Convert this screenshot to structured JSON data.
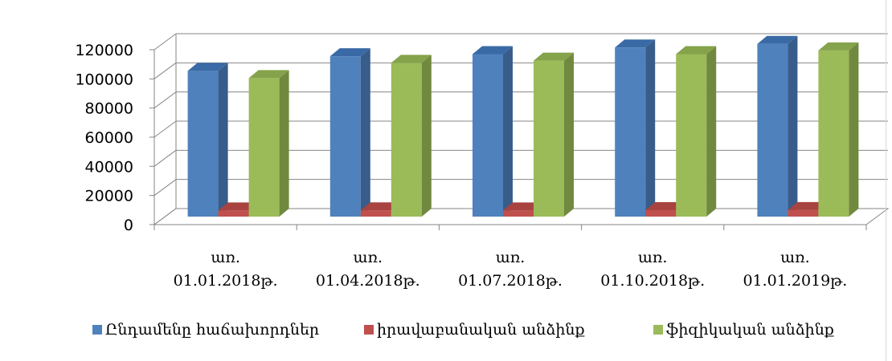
{
  "chart_data": {
    "type": "bar",
    "categories": [
      [
        "առ.",
        "01.01.2018թ."
      ],
      [
        "առ.",
        "01.04.2018թ."
      ],
      [
        "առ.",
        "01.07.2018թ."
      ],
      [
        "առ.",
        "01.10.2018թ."
      ],
      [
        "առ.",
        "01.01.2019թ."
      ]
    ],
    "series": [
      {
        "name": "Ընդամենը հաճախորդներ",
        "color": "#4f81bd",
        "side": "#385d8a",
        "top": "#3a6aa5",
        "values": [
          100000,
          110000,
          111500,
          116000,
          118500
        ]
      },
      {
        "name": "իրավաբանական անձինք",
        "color": "#c0504d",
        "side": "#8c3836",
        "top": "#a84340",
        "values": [
          4200,
          4300,
          4200,
          4400,
          4500
        ]
      },
      {
        "name": "ֆիզիկական անձինք",
        "color": "#9bbb59",
        "side": "#71893f",
        "top": "#84a34b",
        "values": [
          95000,
          105500,
          107000,
          111500,
          114000
        ]
      }
    ],
    "yticks": [
      0,
      20000,
      40000,
      60000,
      80000,
      100000,
      120000
    ],
    "ylim": [
      0,
      120000
    ],
    "three_d": true,
    "grid": true,
    "legend": "bottom",
    "title": "",
    "xlabel": "",
    "ylabel": ""
  }
}
